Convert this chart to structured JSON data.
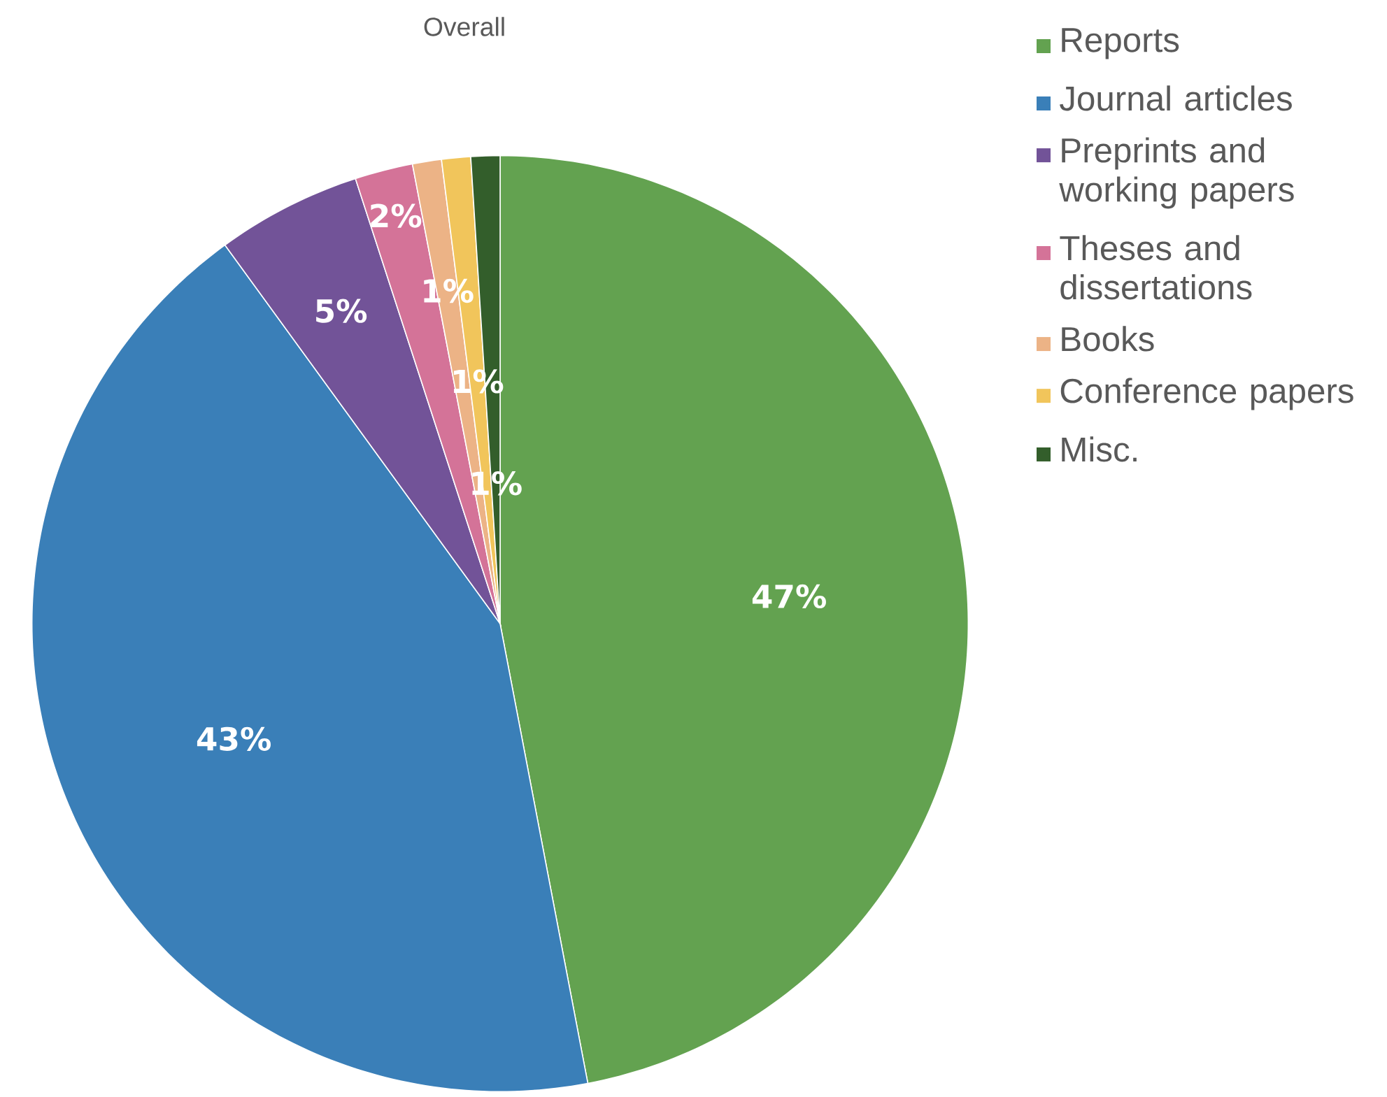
{
  "chart_data": {
    "type": "pie",
    "title": "Overall",
    "categories": [
      "Reports",
      "Journal articles",
      "Preprints and working papers",
      "Theses and dissertations",
      "Books",
      "Conference papers",
      "Misc."
    ],
    "values": [
      47,
      43,
      5,
      2,
      1,
      1,
      1
    ],
    "value_labels": [
      "47%",
      "43%",
      "5%",
      "2%",
      "1%",
      "1%",
      "1%"
    ],
    "colors": [
      "#63a250",
      "#3a7fb8",
      "#725398",
      "#d47398",
      "#ecb386",
      "#f1c55b",
      "#335e2b"
    ],
    "legend": "right"
  }
}
